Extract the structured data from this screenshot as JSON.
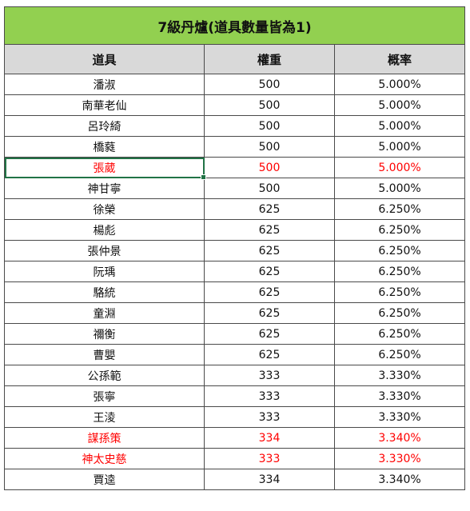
{
  "table": {
    "title": "7級丹爐(道具數量皆為1)",
    "headers": [
      "道具",
      "權重",
      "概率"
    ],
    "rows": [
      {
        "item": "潘淑",
        "weight": "500",
        "prob": "5.000%",
        "red": false
      },
      {
        "item": "南華老仙",
        "weight": "500",
        "prob": "5.000%",
        "red": false
      },
      {
        "item": "呂玲綺",
        "weight": "500",
        "prob": "5.000%",
        "red": false
      },
      {
        "item": "橋蕤",
        "weight": "500",
        "prob": "5.000%",
        "red": false
      },
      {
        "item": "張葳",
        "weight": "500",
        "prob": "5.000%",
        "red": true,
        "selected": true
      },
      {
        "item": "神甘寧",
        "weight": "500",
        "prob": "5.000%",
        "red": false
      },
      {
        "item": "徐榮",
        "weight": "625",
        "prob": "6.250%",
        "red": false
      },
      {
        "item": "楊彪",
        "weight": "625",
        "prob": "6.250%",
        "red": false
      },
      {
        "item": "張仲景",
        "weight": "625",
        "prob": "6.250%",
        "red": false
      },
      {
        "item": "阮瑀",
        "weight": "625",
        "prob": "6.250%",
        "red": false
      },
      {
        "item": "駱統",
        "weight": "625",
        "prob": "6.250%",
        "red": false
      },
      {
        "item": "童淵",
        "weight": "625",
        "prob": "6.250%",
        "red": false
      },
      {
        "item": "禰衡",
        "weight": "625",
        "prob": "6.250%",
        "red": false
      },
      {
        "item": "曹嬰",
        "weight": "625",
        "prob": "6.250%",
        "red": false
      },
      {
        "item": "公孫範",
        "weight": "333",
        "prob": "3.330%",
        "red": false
      },
      {
        "item": "張寧",
        "weight": "333",
        "prob": "3.330%",
        "red": false
      },
      {
        "item": "王淩",
        "weight": "333",
        "prob": "3.330%",
        "red": false
      },
      {
        "item": "謀孫策",
        "weight": "334",
        "prob": "3.340%",
        "red": true
      },
      {
        "item": "神太史慈",
        "weight": "333",
        "prob": "3.330%",
        "red": true
      },
      {
        "item": "賈逵",
        "weight": "334",
        "prob": "3.340%",
        "red": false
      }
    ]
  },
  "colors": {
    "title_bg": "#92d050",
    "header_bg": "#d9d9d9",
    "highlight_text": "#ff0000",
    "selection_border": "#217346"
  }
}
